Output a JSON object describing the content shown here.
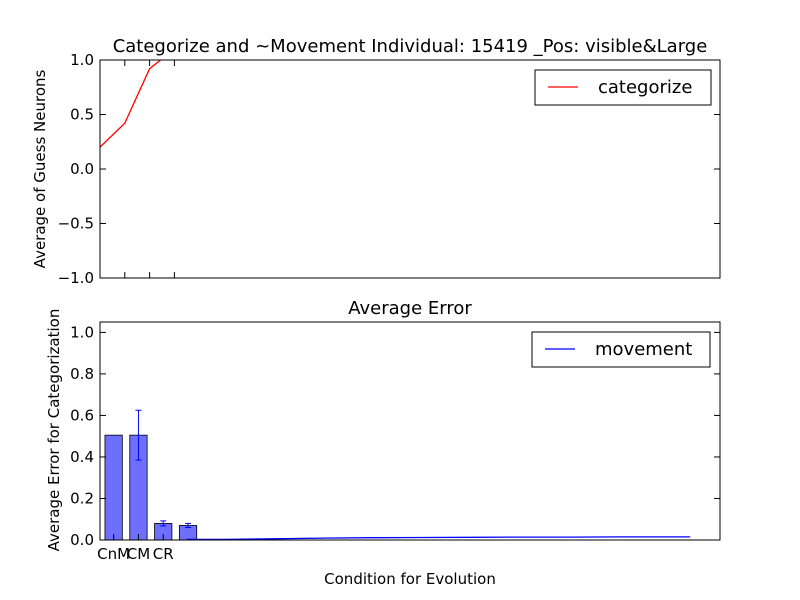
{
  "chart_data": [
    {
      "type": "line",
      "title": "Categorize and ~Movement Individual: 15419 _Pos: visible&Large",
      "xlabel": "",
      "ylabel": "Average of Guess Neurons",
      "ylim": [
        -1.0,
        1.0
      ],
      "xlim": [
        -1,
        24
      ],
      "yticks": [
        "1.0",
        "0.5",
        "0.0",
        "−0.5",
        "−1.0"
      ],
      "ytick_values": [
        1.0,
        0.5,
        0.0,
        -0.5,
        -1.0
      ],
      "xticks_values": [
        0,
        1,
        2
      ],
      "legend": {
        "placement": "top-right",
        "entries": [
          "categorize"
        ]
      },
      "series": [
        {
          "name": "categorize",
          "color": "#ff0000",
          "x": [
            -1,
            0,
            1,
            2,
            3
          ],
          "y": [
            0.2,
            0.42,
            0.92,
            1.1,
            1.3
          ]
        }
      ]
    },
    {
      "type": "bar",
      "title": "Average Error",
      "xlabel": "Condition for Evolution",
      "ylabel": "Average Error for Categorization",
      "ylim": [
        0.0,
        1.05
      ],
      "xlim": [
        -1,
        24
      ],
      "yticks": [
        "0.0",
        "0.2",
        "0.4",
        "0.6",
        "0.8",
        "1.0"
      ],
      "ytick_values": [
        0.0,
        0.2,
        0.4,
        0.6,
        0.8,
        1.0
      ],
      "categories": [
        "CnM",
        "CM",
        "CR"
      ],
      "category_x": [
        -1,
        0,
        1
      ],
      "bar_color": "#6666ff",
      "bars": [
        {
          "x": -1,
          "value": 0.505,
          "err": 0.0
        },
        {
          "x": 0,
          "value": 0.505,
          "err": 0.12
        },
        {
          "x": 1,
          "value": 0.08,
          "err": 0.012
        },
        {
          "x": 2,
          "value": 0.07,
          "err": 0.01
        }
      ],
      "legend": {
        "placement": "top-right",
        "entries": [
          "movement"
        ]
      },
      "series": [
        {
          "name": "movement",
          "color": "#0000ff",
          "x": [
            2.5,
            4,
            6,
            8,
            10,
            12,
            14,
            16,
            18,
            20,
            22.8
          ],
          "y": [
            0.003,
            0.003,
            0.006,
            0.009,
            0.011,
            0.012,
            0.013,
            0.014,
            0.014,
            0.015,
            0.015
          ]
        }
      ]
    }
  ]
}
